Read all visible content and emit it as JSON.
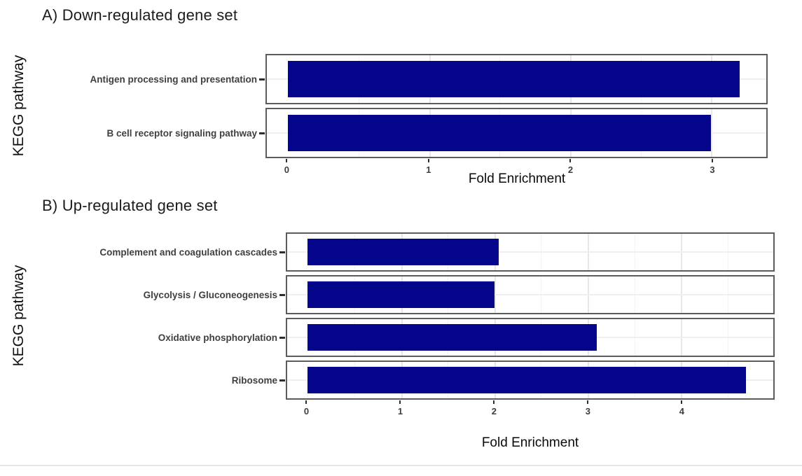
{
  "figure": {
    "description": "KEGG pathway fold-enrichment bar charts for down- and up-regulated gene sets"
  },
  "chart_data": [
    {
      "type": "bar",
      "orientation": "horizontal",
      "title": "A) Down-regulated gene set",
      "ylabel": "KEGG pathway",
      "xlabel": "Fold Enrichment",
      "categories": [
        "Antigen processing and presentation",
        "B cell receptor signaling pathway"
      ],
      "values": [
        3.2,
        3.0
      ],
      "xticks": [
        0,
        1,
        2,
        3
      ],
      "xlim": [
        -0.15,
        3.39
      ],
      "bar_color": "#05058B",
      "faceted_rows": true,
      "grid": "major+minor",
      "legend": "none"
    },
    {
      "type": "bar",
      "orientation": "horizontal",
      "title": "B) Up-regulated gene set",
      "ylabel": "KEGG pathway",
      "xlabel": "Fold Enrichment",
      "categories": [
        "Complement and coagulation cascades",
        "Glycolysis / Gluconeogenesis",
        "Oxidative phosphorylation",
        "Ribosome"
      ],
      "values": [
        2.05,
        2.0,
        3.1,
        4.7
      ],
      "xticks": [
        0,
        1,
        2,
        3,
        4
      ],
      "xlim": [
        -0.22,
        4.99
      ],
      "bar_color": "#05058B",
      "faceted_rows": true,
      "grid": "major+minor",
      "legend": "none"
    }
  ]
}
